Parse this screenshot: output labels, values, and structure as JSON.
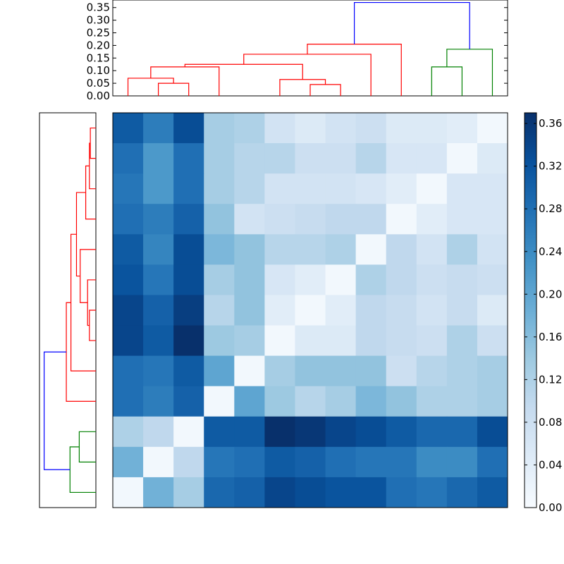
{
  "chart_data": [
    {
      "type": "dendrogram",
      "orientation": "top",
      "ylim": [
        0,
        0.38
      ],
      "yticks": [
        "0.00",
        "0.05",
        "0.10",
        "0.15",
        "0.20",
        "0.25",
        "0.30",
        "0.35"
      ],
      "leaf_count": 13,
      "links": [
        {
          "a": 10,
          "b": 11,
          "h": 0.115,
          "color": "#008000"
        },
        {
          "a": 12,
          "b": 10.5,
          "h": 0.185,
          "color": "#008000"
        },
        {
          "a": 6,
          "b": 7,
          "h": 0.045,
          "color": "#ff0000"
        },
        {
          "a": 5,
          "b": 6.5,
          "h": 0.065,
          "color": "#ff0000"
        },
        {
          "a": 1,
          "b": 2,
          "h": 0.05,
          "color": "#ff0000"
        },
        {
          "a": 0,
          "b": 1.5,
          "h": 0.07,
          "color": "#ff0000"
        },
        {
          "a": 3,
          "b": 0.75,
          "h": 0.115,
          "color": "#ff0000"
        },
        {
          "a": 5.75,
          "b": 1.875,
          "h": 0.125,
          "color": "#ff0000"
        },
        {
          "a": 8,
          "b": 3.8125,
          "h": 0.165,
          "color": "#ff0000"
        },
        {
          "a": 9,
          "b": 5.90625,
          "h": 0.205,
          "color": "#ff0000"
        },
        {
          "a": 11.25,
          "b": 7.453125,
          "h": 0.37,
          "color": "#0000ff"
        }
      ]
    },
    {
      "type": "dendrogram",
      "orientation": "left",
      "leaf_count": 13,
      "links": [
        {
          "a": 0,
          "b": 1,
          "h": 0.03,
          "color": "#ff0000"
        },
        {
          "a": 2,
          "b": 0.5,
          "h": 0.035,
          "color": "#ff0000"
        },
        {
          "a": 3,
          "b": 1.25,
          "h": 0.055,
          "color": "#ff0000"
        },
        {
          "a": 6,
          "b": 7,
          "h": 0.035,
          "color": "#ff0000"
        },
        {
          "a": 5,
          "b": 6.5,
          "h": 0.045,
          "color": "#ff0000"
        },
        {
          "a": 4,
          "b": 5.75,
          "h": 0.085,
          "color": "#ff0000"
        },
        {
          "a": 2.125,
          "b": 4.875,
          "h": 0.105,
          "color": "#ff0000"
        },
        {
          "a": 3.5,
          "b": 8,
          "h": 0.135,
          "color": "#ff0000"
        },
        {
          "a": 5.75,
          "b": 9,
          "h": 0.16,
          "color": "#ff0000"
        },
        {
          "a": 10,
          "b": 11,
          "h": 0.09,
          "color": "#008000"
        },
        {
          "a": 12,
          "b": 10.5,
          "h": 0.14,
          "color": "#008000"
        },
        {
          "a": 7.375,
          "b": 11.25,
          "h": 0.28,
          "color": "#0000ff"
        }
      ]
    },
    {
      "type": "heatmap",
      "colormap": "Blues",
      "vmin": 0,
      "vmax": 0.37,
      "rows": 13,
      "cols": 13,
      "values": [
        [
          0.31,
          0.26,
          0.33,
          0.13,
          0.12,
          0.07,
          0.05,
          0.07,
          0.08,
          0.05,
          0.05,
          0.04,
          0.01
        ],
        [
          0.28,
          0.22,
          0.28,
          0.13,
          0.11,
          0.11,
          0.08,
          0.08,
          0.11,
          0.06,
          0.06,
          0.01,
          0.05
        ],
        [
          0.27,
          0.22,
          0.28,
          0.13,
          0.11,
          0.07,
          0.07,
          0.07,
          0.06,
          0.04,
          0.01,
          0.06,
          0.06
        ],
        [
          0.28,
          0.26,
          0.3,
          0.15,
          0.07,
          0.08,
          0.09,
          0.1,
          0.1,
          0.01,
          0.04,
          0.06,
          0.06
        ],
        [
          0.31,
          0.25,
          0.33,
          0.17,
          0.15,
          0.11,
          0.11,
          0.12,
          0.01,
          0.1,
          0.07,
          0.12,
          0.07
        ],
        [
          0.32,
          0.27,
          0.33,
          0.13,
          0.15,
          0.06,
          0.04,
          0.01,
          0.12,
          0.1,
          0.08,
          0.09,
          0.08
        ],
        [
          0.34,
          0.3,
          0.35,
          0.11,
          0.15,
          0.04,
          0.01,
          0.04,
          0.1,
          0.09,
          0.07,
          0.09,
          0.05
        ],
        [
          0.34,
          0.31,
          0.37,
          0.14,
          0.13,
          0.01,
          0.05,
          0.05,
          0.1,
          0.09,
          0.08,
          0.12,
          0.08
        ],
        [
          0.28,
          0.27,
          0.31,
          0.2,
          0.01,
          0.13,
          0.15,
          0.15,
          0.15,
          0.08,
          0.11,
          0.12,
          0.13
        ],
        [
          0.28,
          0.26,
          0.3,
          0.01,
          0.2,
          0.14,
          0.11,
          0.13,
          0.17,
          0.15,
          0.12,
          0.12,
          0.13
        ],
        [
          0.12,
          0.1,
          0.01,
          0.31,
          0.31,
          0.37,
          0.36,
          0.34,
          0.33,
          0.31,
          0.29,
          0.29,
          0.33
        ],
        [
          0.18,
          0.01,
          0.1,
          0.27,
          0.28,
          0.31,
          0.3,
          0.28,
          0.27,
          0.27,
          0.24,
          0.24,
          0.28
        ],
        [
          0.01,
          0.18,
          0.13,
          0.29,
          0.3,
          0.34,
          0.33,
          0.32,
          0.32,
          0.28,
          0.27,
          0.29,
          0.31
        ]
      ]
    },
    {
      "type": "colorbar",
      "colormap": "Blues",
      "range": [
        0,
        0.37
      ],
      "ticks": [
        "0.00",
        "0.04",
        "0.08",
        "0.12",
        "0.16",
        "0.20",
        "0.24",
        "0.28",
        "0.32",
        "0.36"
      ]
    }
  ]
}
